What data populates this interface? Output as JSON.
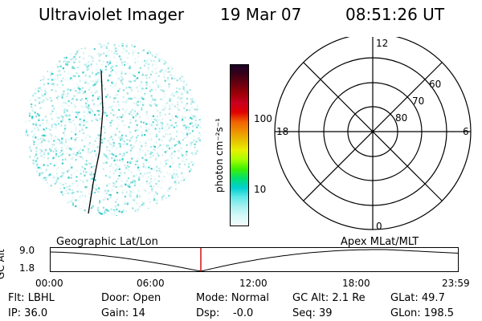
{
  "header": {
    "instrument_title": "Ultraviolet Imager",
    "date": "19 Mar 07",
    "time": "08:51:26 UT"
  },
  "colorbar": {
    "unit_label": "photon cm⁻²s⁻¹",
    "tick_labels": [
      "100",
      "10"
    ],
    "colors": [
      "#1a0026",
      "#3b0018",
      "#6b0010",
      "#9b0008",
      "#c80020",
      "#e00000",
      "#f06000",
      "#f09000",
      "#e8c000",
      "#e8f000",
      "#a8ff00",
      "#40f000",
      "#00e070",
      "#00d0d0",
      "#60e8e8",
      "#a8f0f0",
      "#d8f8f8",
      "#f4fcfc"
    ]
  },
  "polar_plot": {
    "mlt_labels": {
      "top": "12",
      "left": "18",
      "right": "6",
      "bottom": "0"
    },
    "lat_labels": [
      "60",
      "70",
      "80"
    ]
  },
  "timeline": {
    "left_caption": "Geographic Lat/Lon",
    "right_caption": "Apex MLat/MLT",
    "y_axis_label": "GC Alt",
    "y_tick_labels": [
      "9.0",
      "1.8"
    ],
    "x_tick_labels": [
      "00:00",
      "06:00",
      "12:00",
      "18:00",
      "23:59"
    ],
    "current_time_fraction": 0.369,
    "marker_color": "#d00000"
  },
  "status": {
    "filter": "Flt: LBHL",
    "door": "Door: Open",
    "mode": "Mode: Normal",
    "gc_alt": "GC Alt: 2.1 Re",
    "glat": "GLat:  49.7",
    "ip": "IP: 36.0",
    "gain": "Gain: 14",
    "dsp": "Dsp:    -0.0",
    "seq": "Seq: 39",
    "glon": "GLon: 198.5"
  }
}
